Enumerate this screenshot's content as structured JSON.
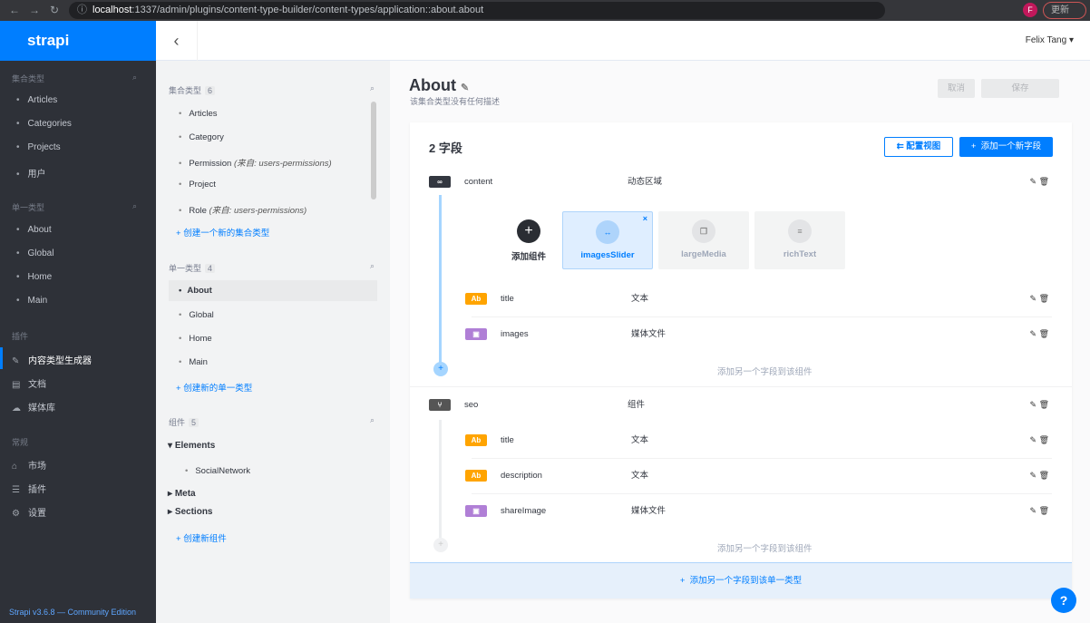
{
  "browser": {
    "url_host": "localhost",
    "url_path": ":1337/admin/plugins/content-type-builder/content-types/application::about.about",
    "update_label": "更新",
    "profile_initial": "F"
  },
  "menu": {
    "brand": "strapi",
    "collection_title": "集合类型",
    "collection_items": [
      "Articles",
      "Categories",
      "Projects",
      "用户"
    ],
    "single_title": "单一类型",
    "single_items": [
      "About",
      "Global",
      "Home",
      "Main"
    ],
    "plugins_title": "插件",
    "plugins": [
      "内容类型生成器",
      "文档",
      "媒体库"
    ],
    "general_title": "常规",
    "general": [
      "市场",
      "插件",
      "设置"
    ],
    "footer": "Strapi v3.6.8 — Community Edition"
  },
  "header": {
    "user": "Felix Tang"
  },
  "ctb": {
    "collection": {
      "title": "集合类型",
      "count": "6",
      "items": [
        "Articles",
        "Category",
        "Permission",
        "Project",
        "Role"
      ],
      "notes": [
        "",
        "",
        "(来自: users-permissions)",
        "",
        "(来自: users-permissions)"
      ],
      "create": "创建一个新的集合类型"
    },
    "single": {
      "title": "单一类型",
      "count": "4",
      "items": [
        "About",
        "Global",
        "Home",
        "Main"
      ],
      "create": "创建新的单一类型"
    },
    "components": {
      "title": "组件",
      "count": "5",
      "groups": [
        "Elements",
        "Meta",
        "Sections"
      ],
      "elements_items": [
        "SocialNetwork"
      ],
      "create": "创建新组件"
    }
  },
  "main": {
    "title": "About",
    "description": "该集合类型没有任何描述",
    "cancel": "取消",
    "save": "保存",
    "field_count": "2 字段",
    "configure": "配置视图",
    "add_field": "添加一个新字段",
    "fields": [
      {
        "name": "content",
        "type": "动态区域"
      },
      {
        "name": "seo",
        "type": "组件"
      }
    ],
    "dz": {
      "add_component": "添加组件",
      "components": [
        "imagesSlider",
        "largeMedia",
        "richText"
      ],
      "fields": [
        {
          "name": "title",
          "type": "文本"
        },
        {
          "name": "images",
          "type": "媒体文件"
        }
      ],
      "add_more": "添加另一个字段到该组件"
    },
    "seo": {
      "fields": [
        {
          "name": "title",
          "type": "文本"
        },
        {
          "name": "description",
          "type": "文本"
        },
        {
          "name": "shareImage",
          "type": "媒体文件"
        }
      ],
      "add_more": "添加另一个字段到该组件"
    },
    "add_to_type": "添加另一个字段到该单一类型",
    "colors": {
      "text": "#ffa400",
      "media": "#b07fd6",
      "accent": "#007eff"
    }
  }
}
